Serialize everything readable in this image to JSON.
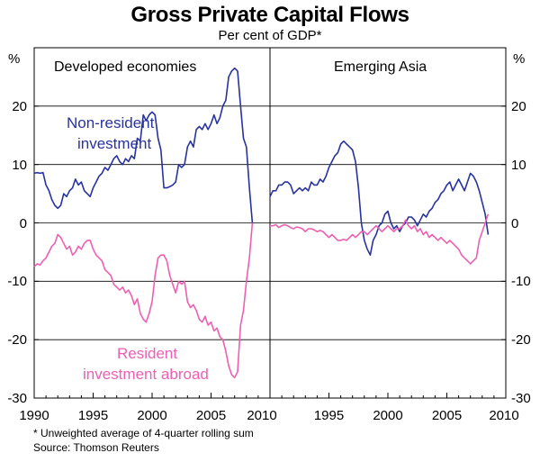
{
  "title": "Gross Private Capital Flows",
  "subtitle": "Per cent of GDP*",
  "footnote": "*   Unweighted average of 4-quarter rolling sum",
  "source": "Source: Thomson Reuters",
  "colors": {
    "non_resident": "#2633a0",
    "resident": "#ee5fb3",
    "axis": "#000000"
  },
  "chart_data": [
    {
      "type": "line",
      "title": "Developed economies",
      "ylabel": "%",
      "xlim": [
        1990,
        2010
      ],
      "ylim": [
        -30,
        30
      ],
      "x_ticks": [
        "1990",
        "1995",
        "2000",
        "2005",
        "2010"
      ],
      "y_ticks": [
        "20",
        "10",
        "0",
        "-10",
        "-20",
        "-30"
      ],
      "annotations": {
        "non_resident_1": "Non-resident",
        "non_resident_2": "investment",
        "resident_1": "Resident",
        "resident_2": "investment abroad"
      },
      "series": [
        {
          "name": "Non-resident investment",
          "color": "#2633a0",
          "x": [
            1990.0,
            1990.25,
            1990.5,
            1990.75,
            1991.0,
            1991.25,
            1991.5,
            1991.75,
            1992.0,
            1992.25,
            1992.5,
            1992.75,
            1993.0,
            1993.25,
            1993.5,
            1993.75,
            1994.0,
            1994.25,
            1994.5,
            1994.75,
            1995.0,
            1995.25,
            1995.5,
            1995.75,
            1996.0,
            1996.25,
            1996.5,
            1996.75,
            1997.0,
            1997.25,
            1997.5,
            1997.75,
            1998.0,
            1998.25,
            1998.5,
            1998.75,
            1999.0,
            1999.25,
            1999.5,
            1999.75,
            2000.0,
            2000.25,
            2000.5,
            2000.75,
            2001.0,
            2001.25,
            2001.5,
            2001.75,
            2002.0,
            2002.25,
            2002.5,
            2002.75,
            2003.0,
            2003.25,
            2003.5,
            2003.75,
            2004.0,
            2004.25,
            2004.5,
            2004.75,
            2005.0,
            2005.25,
            2005.5,
            2005.75,
            2006.0,
            2006.25,
            2006.5,
            2006.75,
            2007.0,
            2007.25,
            2007.5,
            2007.75,
            2008.0,
            2008.25,
            2008.5
          ],
          "values": [
            8.5,
            8.6,
            8.5,
            8.6,
            6.5,
            5.5,
            4.0,
            3.0,
            2.5,
            3.0,
            5.0,
            4.5,
            5.5,
            6.0,
            7.5,
            6.5,
            7.0,
            5.5,
            5.0,
            4.5,
            6.0,
            7.0,
            8.0,
            8.5,
            9.5,
            9.0,
            10.0,
            11.0,
            11.5,
            10.5,
            10.0,
            11.0,
            10.5,
            11.5,
            11.0,
            14.5,
            14.0,
            18.5,
            17.5,
            18.5,
            19.0,
            18.5,
            14.5,
            12.5,
            6.0,
            6.0,
            6.2,
            6.5,
            7.0,
            10.0,
            9.5,
            10.0,
            13.0,
            14.0,
            13.0,
            16.0,
            16.5,
            16.0,
            17.0,
            16.0,
            17.0,
            18.5,
            17.0,
            18.0,
            20.0,
            21.0,
            25.0,
            26.0,
            26.5,
            26.0,
            20.0,
            14.5,
            13.0,
            6.0,
            0.0
          ]
        },
        {
          "name": "Resident investment abroad",
          "color": "#ee5fb3",
          "x": [
            1990.0,
            1990.25,
            1990.5,
            1990.75,
            1991.0,
            1991.25,
            1991.5,
            1991.75,
            1992.0,
            1992.25,
            1992.5,
            1992.75,
            1993.0,
            1993.25,
            1993.5,
            1993.75,
            1994.0,
            1994.25,
            1994.5,
            1994.75,
            1995.0,
            1995.25,
            1995.5,
            1995.75,
            1996.0,
            1996.25,
            1996.5,
            1996.75,
            1997.0,
            1997.25,
            1997.5,
            1997.75,
            1998.0,
            1998.25,
            1998.5,
            1998.75,
            1999.0,
            1999.25,
            1999.5,
            1999.75,
            2000.0,
            2000.25,
            2000.5,
            2000.75,
            2001.0,
            2001.25,
            2001.5,
            2001.75,
            2002.0,
            2002.25,
            2002.5,
            2002.75,
            2003.0,
            2003.25,
            2003.5,
            2003.75,
            2004.0,
            2004.25,
            2004.5,
            2004.75,
            2005.0,
            2005.25,
            2005.5,
            2005.75,
            2006.0,
            2006.25,
            2006.5,
            2006.75,
            2007.0,
            2007.25,
            2007.5,
            2007.75,
            2008.0,
            2008.25,
            2008.5
          ],
          "values": [
            -7.5,
            -7.0,
            -7.2,
            -6.5,
            -6.0,
            -5.0,
            -4.0,
            -3.5,
            -2.0,
            -2.5,
            -3.5,
            -4.5,
            -4.0,
            -5.5,
            -5.0,
            -4.0,
            -4.5,
            -3.5,
            -3.0,
            -3.0,
            -4.5,
            -5.5,
            -6.0,
            -6.5,
            -8.0,
            -8.5,
            -9.0,
            -10.5,
            -11.0,
            -11.5,
            -11.0,
            -12.0,
            -11.5,
            -12.5,
            -14.0,
            -13.0,
            -15.5,
            -16.5,
            -17.0,
            -15.5,
            -13.5,
            -9.0,
            -6.0,
            -5.5,
            -5.5,
            -6.5,
            -9.0,
            -10.5,
            -12.0,
            -10.0,
            -10.5,
            -10.0,
            -13.5,
            -14.5,
            -14.0,
            -15.0,
            -16.5,
            -17.0,
            -16.0,
            -17.5,
            -17.0,
            -18.5,
            -18.0,
            -19.5,
            -20.0,
            -22.0,
            -24.5,
            -26.0,
            -26.5,
            -25.5,
            -17.5,
            -15.0,
            -10.0,
            -6.0,
            0.0
          ]
        }
      ]
    },
    {
      "type": "line",
      "title": "Emerging Asia",
      "ylabel": "%",
      "xlim": [
        1990,
        2010
      ],
      "ylim": [
        -30,
        30
      ],
      "x_ticks": [
        "1995",
        "2000",
        "2005",
        "2010"
      ],
      "y_ticks": [
        "20",
        "10",
        "0",
        "-10",
        "-20",
        "-30"
      ],
      "series": [
        {
          "name": "Non-resident investment",
          "color": "#2633a0",
          "x": [
            1990.0,
            1990.25,
            1990.5,
            1990.75,
            1991.0,
            1991.25,
            1991.5,
            1991.75,
            1992.0,
            1992.25,
            1992.5,
            1992.75,
            1993.0,
            1993.25,
            1993.5,
            1993.75,
            1994.0,
            1994.25,
            1994.5,
            1994.75,
            1995.0,
            1995.25,
            1995.5,
            1995.75,
            1996.0,
            1996.25,
            1996.5,
            1996.75,
            1997.0,
            1997.25,
            1997.5,
            1997.75,
            1998.0,
            1998.25,
            1998.5,
            1998.75,
            1999.0,
            1999.25,
            1999.5,
            1999.75,
            2000.0,
            2000.25,
            2000.5,
            2000.75,
            2001.0,
            2001.25,
            2001.5,
            2001.75,
            2002.0,
            2002.25,
            2002.5,
            2002.75,
            2003.0,
            2003.25,
            2003.5,
            2003.75,
            2004.0,
            2004.25,
            2004.5,
            2004.75,
            2005.0,
            2005.25,
            2005.5,
            2005.75,
            2006.0,
            2006.25,
            2006.5,
            2006.75,
            2007.0,
            2007.25,
            2007.5,
            2007.75,
            2008.0,
            2008.25,
            2008.5
          ],
          "values": [
            4.5,
            5.5,
            5.5,
            6.5,
            6.5,
            7.0,
            7.0,
            6.5,
            5.0,
            5.5,
            6.0,
            5.5,
            6.0,
            5.5,
            7.0,
            6.5,
            6.5,
            7.5,
            7.0,
            8.0,
            9.5,
            10.5,
            11.5,
            12.0,
            13.5,
            14.0,
            13.5,
            13.0,
            12.5,
            10.5,
            6.0,
            0.0,
            -3.0,
            -4.5,
            -5.5,
            -3.0,
            -2.0,
            -0.5,
            0.0,
            1.5,
            2.0,
            0.0,
            -1.0,
            -0.5,
            -1.5,
            -0.5,
            0.0,
            1.0,
            1.0,
            0.5,
            -0.5,
            0.5,
            1.5,
            1.0,
            2.0,
            2.5,
            3.5,
            4.0,
            5.0,
            5.5,
            6.5,
            7.0,
            5.5,
            6.5,
            7.5,
            6.5,
            5.5,
            7.0,
            8.5,
            8.0,
            7.0,
            5.5,
            3.5,
            1.5,
            -2.0
          ]
        },
        {
          "name": "Resident investment abroad",
          "color": "#ee5fb3",
          "x": [
            1990.0,
            1990.25,
            1990.5,
            1990.75,
            1991.0,
            1991.25,
            1991.5,
            1991.75,
            1992.0,
            1992.25,
            1992.5,
            1992.75,
            1993.0,
            1993.25,
            1993.5,
            1993.75,
            1994.0,
            1994.25,
            1994.5,
            1994.75,
            1995.0,
            1995.25,
            1995.5,
            1995.75,
            1996.0,
            1996.25,
            1996.5,
            1996.75,
            1997.0,
            1997.25,
            1997.5,
            1997.75,
            1998.0,
            1998.25,
            1998.5,
            1998.75,
            1999.0,
            1999.25,
            1999.5,
            1999.75,
            2000.0,
            2000.25,
            2000.5,
            2000.75,
            2001.0,
            2001.25,
            2001.5,
            2001.75,
            2002.0,
            2002.25,
            2002.5,
            2002.75,
            2003.0,
            2003.25,
            2003.5,
            2003.75,
            2004.0,
            2004.25,
            2004.5,
            2004.75,
            2005.0,
            2005.25,
            2005.5,
            2005.75,
            2006.0,
            2006.25,
            2006.5,
            2006.75,
            2007.0,
            2007.25,
            2007.5,
            2007.75,
            2008.0,
            2008.25,
            2008.5
          ],
          "values": [
            -0.5,
            -0.5,
            -0.3,
            -0.8,
            -0.5,
            -0.3,
            -0.5,
            -0.8,
            -1.0,
            -0.7,
            -0.8,
            -1.0,
            -1.5,
            -1.0,
            -1.0,
            -1.2,
            -1.5,
            -1.3,
            -1.5,
            -2.0,
            -2.5,
            -2.0,
            -2.5,
            -3.0,
            -3.0,
            -2.8,
            -3.0,
            -2.5,
            -2.0,
            -2.5,
            -2.0,
            -1.5,
            -1.5,
            -2.0,
            -1.5,
            -1.0,
            -0.5,
            -1.0,
            -1.5,
            -1.0,
            -0.5,
            -1.0,
            -1.5,
            -1.0,
            -1.0,
            -0.5,
            0.5,
            -0.5,
            -1.0,
            -0.5,
            -1.5,
            -1.0,
            -2.0,
            -1.5,
            -2.5,
            -2.0,
            -2.5,
            -3.0,
            -2.5,
            -3.0,
            -3.5,
            -3.0,
            -3.5,
            -4.0,
            -4.5,
            -5.5,
            -6.0,
            -6.5,
            -7.0,
            -6.5,
            -6.0,
            -3.0,
            -1.5,
            0.0,
            1.5
          ]
        }
      ]
    }
  ]
}
